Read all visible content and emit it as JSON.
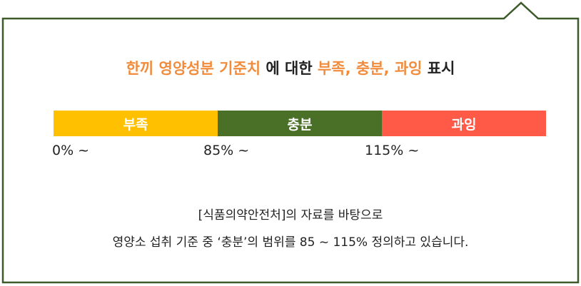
{
  "title": {
    "part1": "한끼 영양성분 기준치",
    "part2": " 에 대한 ",
    "part3": "부족, 충분, 과잉",
    "part4": " 표시"
  },
  "bar": {
    "segments": [
      {
        "label": "부족",
        "start_label": "0% ~"
      },
      {
        "label": "충분",
        "start_label": "85% ~"
      },
      {
        "label": "과잉",
        "start_label": "115% ~"
      }
    ]
  },
  "note": {
    "line1": "[식품의약안전처]의 자료를 바탕으로",
    "line2": "영양소 섭취 기준 중 ‘충분’의 범위를 85 ~ 115% 정의하고 있습니다."
  },
  "colors": {
    "highlight": "#F08C3C",
    "low": "#FFC000",
    "mid": "#4A7027",
    "high": "#FF5A48",
    "border": "#3D5A2B"
  }
}
